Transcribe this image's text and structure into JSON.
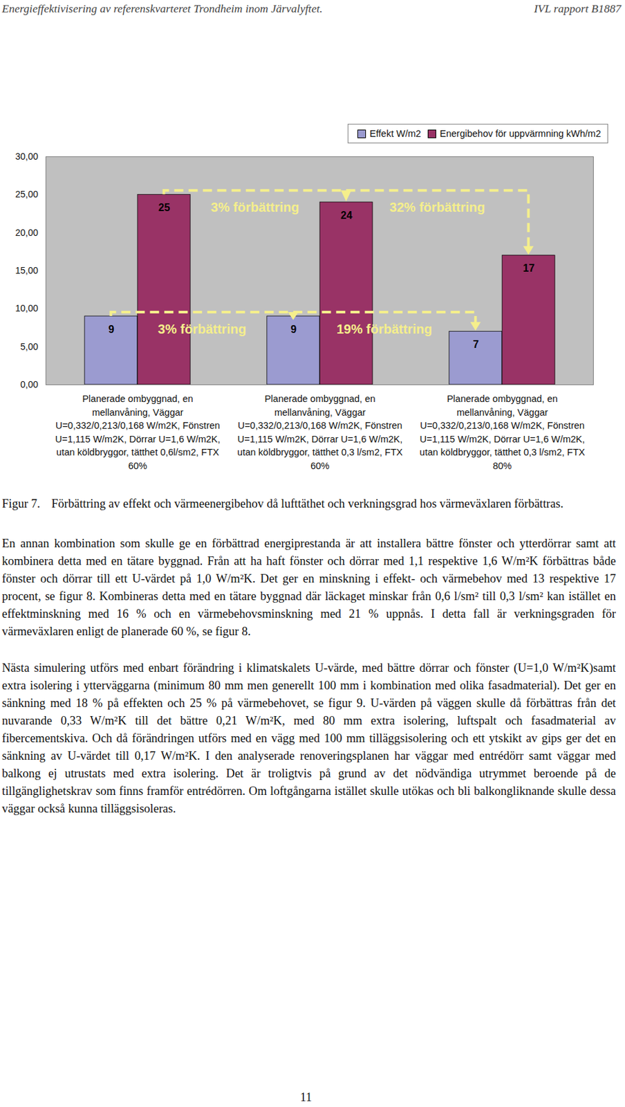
{
  "header": {
    "left": "Energieffektivisering av referenskvarteret Trondheim inom Järvalyftet.",
    "right": "IVL rapport B1887"
  },
  "chart_data": {
    "type": "bar",
    "categories": [
      "Planerade ombyggnad, en\nmellanvåning, Väggar\nU=0,332/0,213/0,168 W/m2K, Fönstren\nU=1,115 W/m2K, Dörrar U=1,6 W/m2K,\nutan köldbryggor, tätthet 0,6l/sm2, FTX\n60%",
      "Planerade ombyggnad, en\nmellanvåning, Väggar\nU=0,332/0,213/0,168 W/m2K, Fönstren\nU=1,115 W/m2K, Dörrar U=1,6 W/m2K,\nutan köldbryggor, tätthet 0,3 l/sm2, FTX\n60%",
      "Planerade ombyggnad, en\nmellanvåning, Väggar\nU=0,332/0,213/0,168 W/m2K, Fönstren\nU=1,115 W/m2K, Dörrar U=1,6 W/m2K,\nutan köldbryggor, tätthet 0,3 l/sm2, FTX\n80%"
    ],
    "series": [
      {
        "name": "Effekt W/m2",
        "color": "#9b9bd0",
        "values": [
          9,
          9,
          7
        ],
        "annotations": [
          "3% förbättring",
          "19% förbättring"
        ]
      },
      {
        "name": "Energibehov för uppvärmning kWh/m2",
        "color": "#993366",
        "values": [
          25,
          24,
          17
        ],
        "annotations": [
          "3% förbättring",
          "32% förbättring"
        ]
      }
    ],
    "ylim": [
      0,
      30
    ],
    "yticks": [
      {
        "value": 0,
        "label": "0,00"
      },
      {
        "value": 5,
        "label": "5,00"
      },
      {
        "value": 10,
        "label": "10,00"
      },
      {
        "value": 15,
        "label": "15,00"
      },
      {
        "value": 20,
        "label": "20,00"
      },
      {
        "value": 25,
        "label": "25,00"
      },
      {
        "value": 30,
        "label": "30,00"
      }
    ],
    "grid": false,
    "legend": "top-right",
    "data_labels": true
  },
  "caption": {
    "label": "Figur 7.",
    "text": "Förbättring av effekt och värmeenergibehov då lufttäthet och verkningsgrad hos värmeväxlaren förbättras."
  },
  "paragraphs": [
    "En annan kombination som skulle ge en förbättrad energiprestanda är att installera bättre fönster och ytterdörrar samt att kombinera detta med en tätare byggnad. Från att ha haft fönster och dörrar med 1,1 respektive 1,6 W/m²K förbättras både fönster och dörrar till ett U-värdet på 1,0 W/m²K. Det ger en minskning i effekt- och värmebehov med 13 respektive 17 procent, se figur 8. Kombineras detta med en tätare byggnad där läckaget minskar från 0,6 l/sm² till 0,3 l/sm² kan istället en effektminskning med 16 % och en värmebehovsminskning med 21 % uppnås. I detta fall är verkningsgraden för värmeväxlaren enligt de planerade 60 %, se figur 8.",
    "Nästa simulering utförs med enbart förändring i klimatskalets U-värde, med bättre dörrar och fönster (U=1,0 W/m²K)samt extra isolering i ytterväggarna (minimum 80 mm men generellt 100 mm i kombination med olika fasadmaterial). Det ger en sänkning med 18 % på effekten och 25 % på värmebehovet, se figur 9. U-värden på väggen skulle då förbättras från det nuvarande 0,33 W/m²K till det bättre 0,21 W/m²K, med 80 mm extra isolering, luftspalt och fasadmaterial av fibercementskiva. Och då förändringen utförs med en vägg med 100 mm tilläggsisolering och ett ytskikt av gips ger det en sänkning av U-värdet till 0,17 W/m²K. I den analyserade renoveringsplanen har väggar med entrédörr samt väggar med balkong ej utrustats med extra isolering. Det är troligtvis på grund av det nödvändiga utrymmet beroende på de tillgänglighetskrav som finns framför entrédörren. Om loftgångarna istället skulle utökas och bli balkongliknande skulle dessa väggar också kunna tilläggsisoleras."
  ],
  "page_number": "11"
}
